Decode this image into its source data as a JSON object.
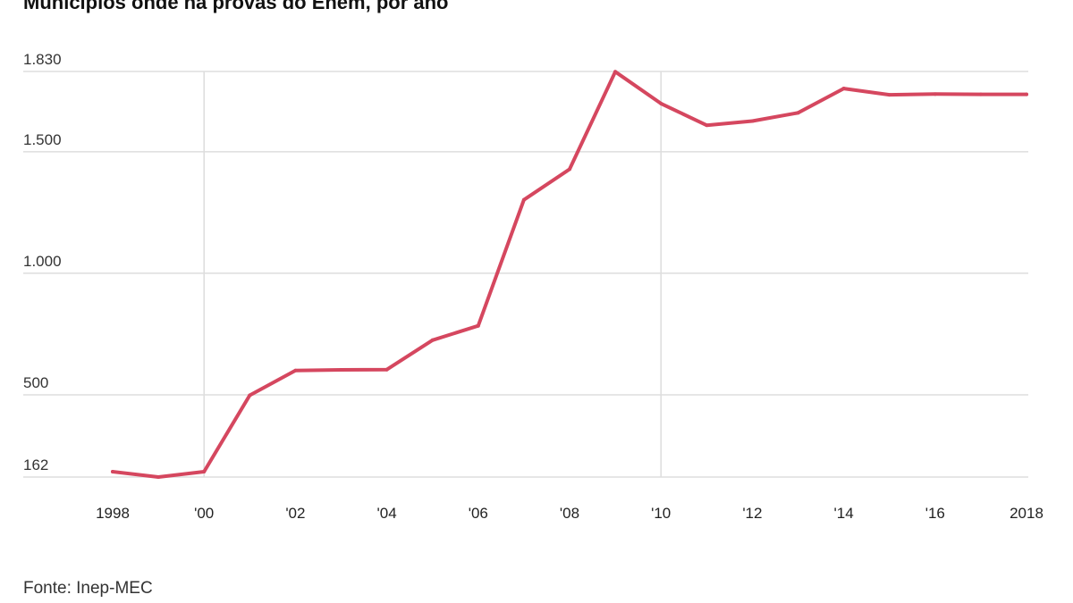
{
  "chart_data": {
    "type": "line",
    "title": "Municípios onde há provas do Enem, por ano",
    "source": "Fonte: Inep-MEC",
    "x": [
      1998,
      1999,
      2000,
      2001,
      2002,
      2003,
      2004,
      2005,
      2006,
      2007,
      2008,
      2009,
      2010,
      2011,
      2012,
      2013,
      2014,
      2015,
      2016,
      2017,
      2018
    ],
    "series": [
      {
        "values": [
          184,
          162,
          184,
          498,
          600,
          603,
          604,
          725,
          784,
          1302,
          1428,
          1829,
          1698,
          1609,
          1626,
          1660,
          1760,
          1734,
          1737,
          1736,
          1736
        ]
      }
    ],
    "y_ticks": [
      {
        "value": 162,
        "label": "162"
      },
      {
        "value": 500,
        "label": "500"
      },
      {
        "value": 1000,
        "label": "1.000"
      },
      {
        "value": 1500,
        "label": "1.500"
      },
      {
        "value": 1830,
        "label": "1.830"
      }
    ],
    "x_ticks": [
      {
        "value": 1998,
        "label": "1998"
      },
      {
        "value": 2000,
        "label": "'00"
      },
      {
        "value": 2002,
        "label": "'02"
      },
      {
        "value": 2004,
        "label": "'04"
      },
      {
        "value": 2006,
        "label": "'06"
      },
      {
        "value": 2008,
        "label": "'08"
      },
      {
        "value": 2010,
        "label": "'10"
      },
      {
        "value": 2012,
        "label": "'12"
      },
      {
        "value": 2014,
        "label": "'14"
      },
      {
        "value": 2016,
        "label": "'16"
      },
      {
        "value": 2018,
        "label": "2018"
      }
    ],
    "vertical_gridlines_at": [
      2000,
      2010
    ],
    "xlim": [
      1998,
      2018
    ],
    "ylim": [
      162,
      1830
    ],
    "grid": true,
    "line_color": "#d5475f",
    "grid_color": "#dddddd"
  }
}
